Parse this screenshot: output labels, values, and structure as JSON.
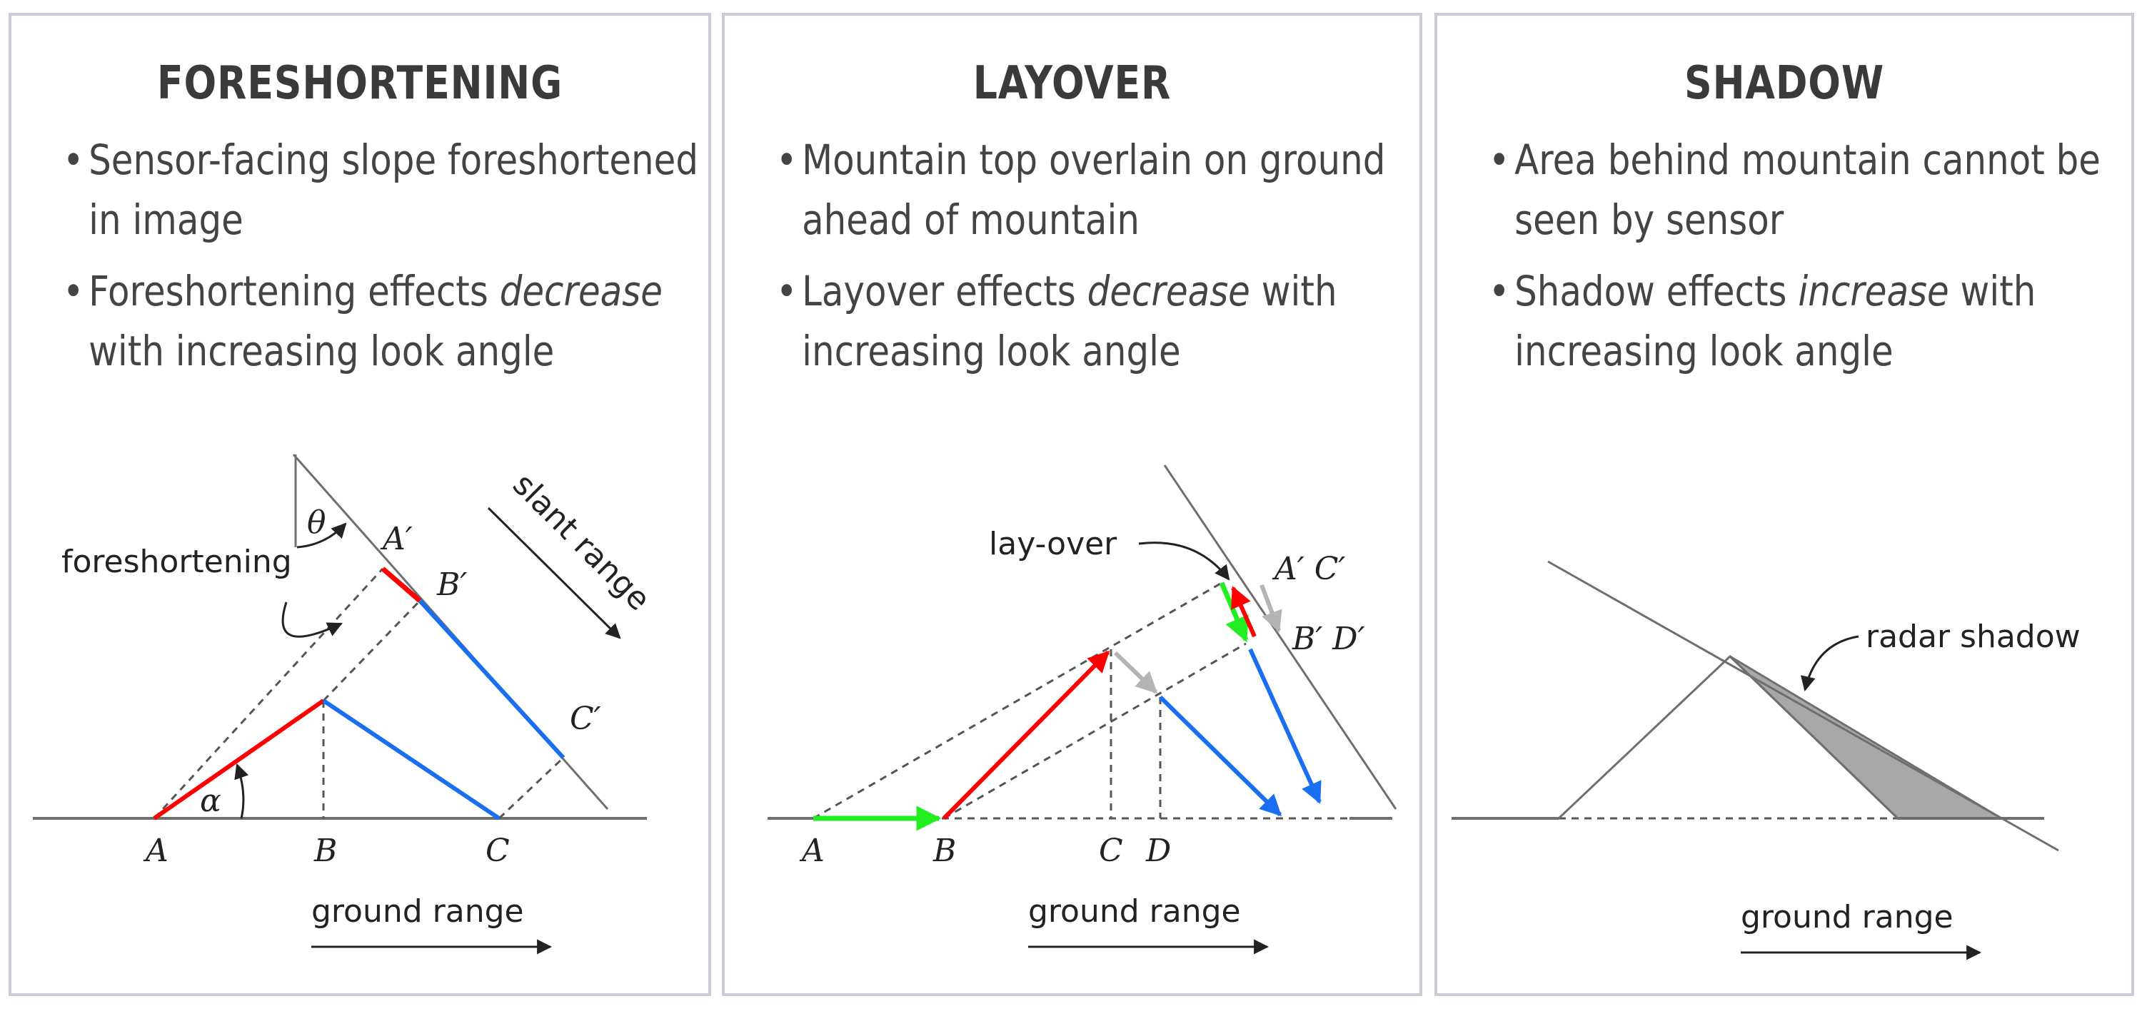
{
  "panels": [
    {
      "title": "FORESHORTENING",
      "bullets": [
        {
          "pre": "Sensor-facing slope foreshortened in image",
          "em": "",
          "post": ""
        },
        {
          "pre": "Foreshortening effects ",
          "em": "decrease",
          "post": " with increasing look angle"
        }
      ],
      "diagram": {
        "annotation": "foreshortening",
        "direction_label": "slant range",
        "angle_look": "θ",
        "angle_slope": "α",
        "points": [
          "A",
          "B",
          "C"
        ],
        "image_points": [
          "A′",
          "B′",
          "C′"
        ],
        "axis_label": "ground range"
      }
    },
    {
      "title": "LAYOVER",
      "bullets": [
        {
          "pre": "Mountain top overlain on ground ahead of mountain",
          "em": "",
          "post": ""
        },
        {
          "pre": "Layover effects ",
          "em": "decrease",
          "post": " with increasing look angle"
        }
      ],
      "diagram": {
        "annotation": "lay-over",
        "points": [
          "A",
          "B",
          "C",
          "D"
        ],
        "image_points_top": "A′ C′",
        "image_points_bottom": "B′ D′",
        "axis_label": "ground range"
      }
    },
    {
      "title": "SHADOW",
      "bullets": [
        {
          "pre": "Area behind mountain cannot be seen by sensor",
          "em": "",
          "post": ""
        },
        {
          "pre": "Shadow effects ",
          "em": "increase",
          "post": " with increasing look angle"
        }
      ],
      "diagram": {
        "annotation": "radar shadow",
        "axis_label": "ground range"
      }
    }
  ],
  "colors": {
    "red": "#ff0000",
    "blue": "#1a6ff0",
    "green": "#22ee22",
    "gray_arrow": "#b4b4b4",
    "shadow_fill": "#a8a8a8",
    "line": "#6f6f6f"
  }
}
